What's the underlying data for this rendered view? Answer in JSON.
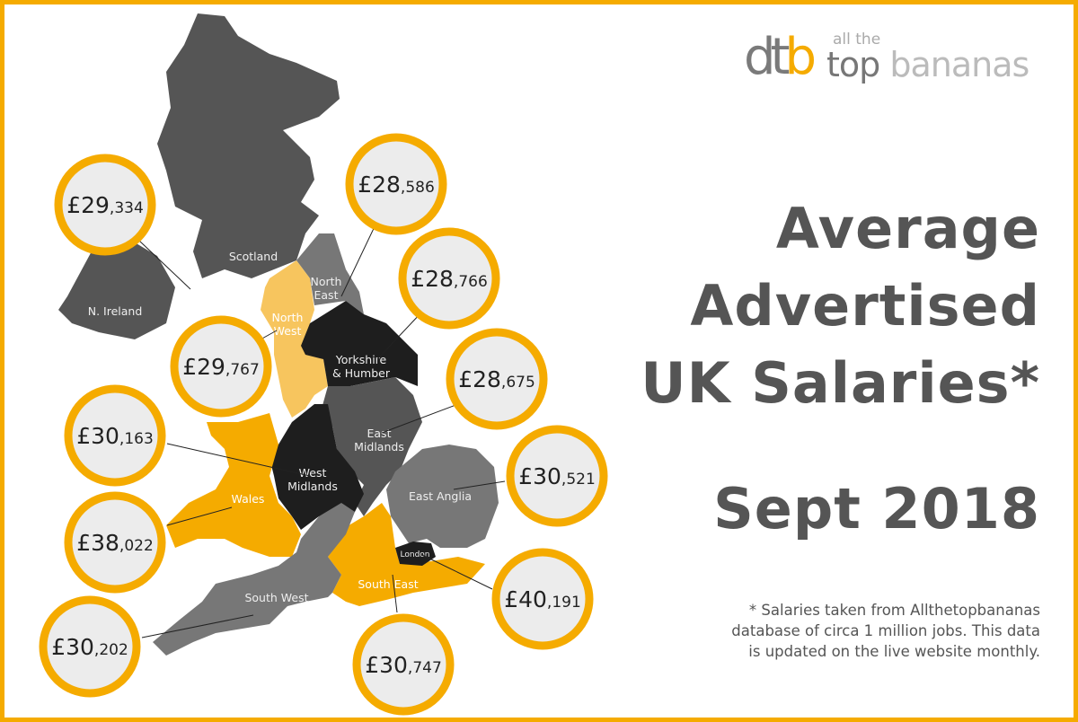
{
  "logo": {
    "mark": "dtb",
    "small": "all the",
    "top": "top",
    "bananas": "bananas"
  },
  "title": {
    "lines": [
      "Average",
      "Advertised",
      "UK Salaries*"
    ],
    "date": "Sept 2018"
  },
  "footnote": {
    "lines": [
      "* Salaries taken from Allthetopbananas",
      "database of circa 1 million jobs. This data",
      "is updated on the live website monthly."
    ]
  },
  "colors": {
    "border": "#f5ab00",
    "ring": "#f5ab00",
    "dark_gray": "#555555",
    "mid_gray": "#777777",
    "black": "#1e1e1e",
    "orange": "#f5ab00",
    "light_orange": "#f7c55e"
  },
  "regions": [
    {
      "key": "scotland",
      "name": "Scotland",
      "salary_main": "£29",
      "salary_rest": ",334"
    },
    {
      "key": "n-ireland",
      "name": "N. Ireland",
      "salary_main": "£29",
      "salary_rest": ",334"
    },
    {
      "key": "north-east",
      "name": "North East",
      "salary_main": "£28",
      "salary_rest": ",586"
    },
    {
      "key": "yorkshire",
      "name": "Yorkshire & Humber",
      "salary_main": "£28",
      "salary_rest": ",766"
    },
    {
      "key": "north-west",
      "name": "North West",
      "salary_main": "£29",
      "salary_rest": ",767"
    },
    {
      "key": "east-midlands",
      "name": "East Midlands",
      "salary_main": "£28",
      "salary_rest": ",675"
    },
    {
      "key": "west-midlands",
      "name": "West Midlands",
      "salary_main": "£30",
      "salary_rest": ",163"
    },
    {
      "key": "east-anglia",
      "name": "East Anglia",
      "salary_main": "£30",
      "salary_rest": ",521"
    },
    {
      "key": "wales",
      "name": "Wales",
      "salary_main": "£38",
      "salary_rest": ",022"
    },
    {
      "key": "london",
      "name": "London",
      "salary_main": "£40",
      "salary_rest": ",191"
    },
    {
      "key": "south-west",
      "name": "South West",
      "salary_main": "£30",
      "salary_rest": ",202"
    },
    {
      "key": "south-east",
      "name": "South East",
      "salary_main": "£30",
      "salary_rest": ",747"
    }
  ],
  "bubbles": [
    {
      "main": "£29",
      "rest": ",334"
    },
    {
      "main": "£28",
      "rest": ",586"
    },
    {
      "main": "£28",
      "rest": ",766"
    },
    {
      "main": "£29",
      "rest": ",767"
    },
    {
      "main": "£28",
      "rest": ",675"
    },
    {
      "main": "£30",
      "rest": ",163"
    },
    {
      "main": "£30",
      "rest": ",521"
    },
    {
      "main": "£38",
      "rest": ",022"
    },
    {
      "main": "£40",
      "rest": ",191"
    },
    {
      "main": "£30",
      "rest": ",202"
    },
    {
      "main": "£30",
      "rest": ",747"
    }
  ],
  "labels": {
    "scotland": "Scotland",
    "nireland": "N. Ireland",
    "ne1": "North",
    "ne2": "East",
    "nw1": "North",
    "nw2": "West",
    "yh1": "Yorkshire",
    "yh2": "& Humber",
    "em1": "East",
    "em2": "Midlands",
    "wm1": "West",
    "wm2": "Midlands",
    "wales": "Wales",
    "ea": "East Anglia",
    "london": "London",
    "se": "South East",
    "sw": "South West"
  }
}
